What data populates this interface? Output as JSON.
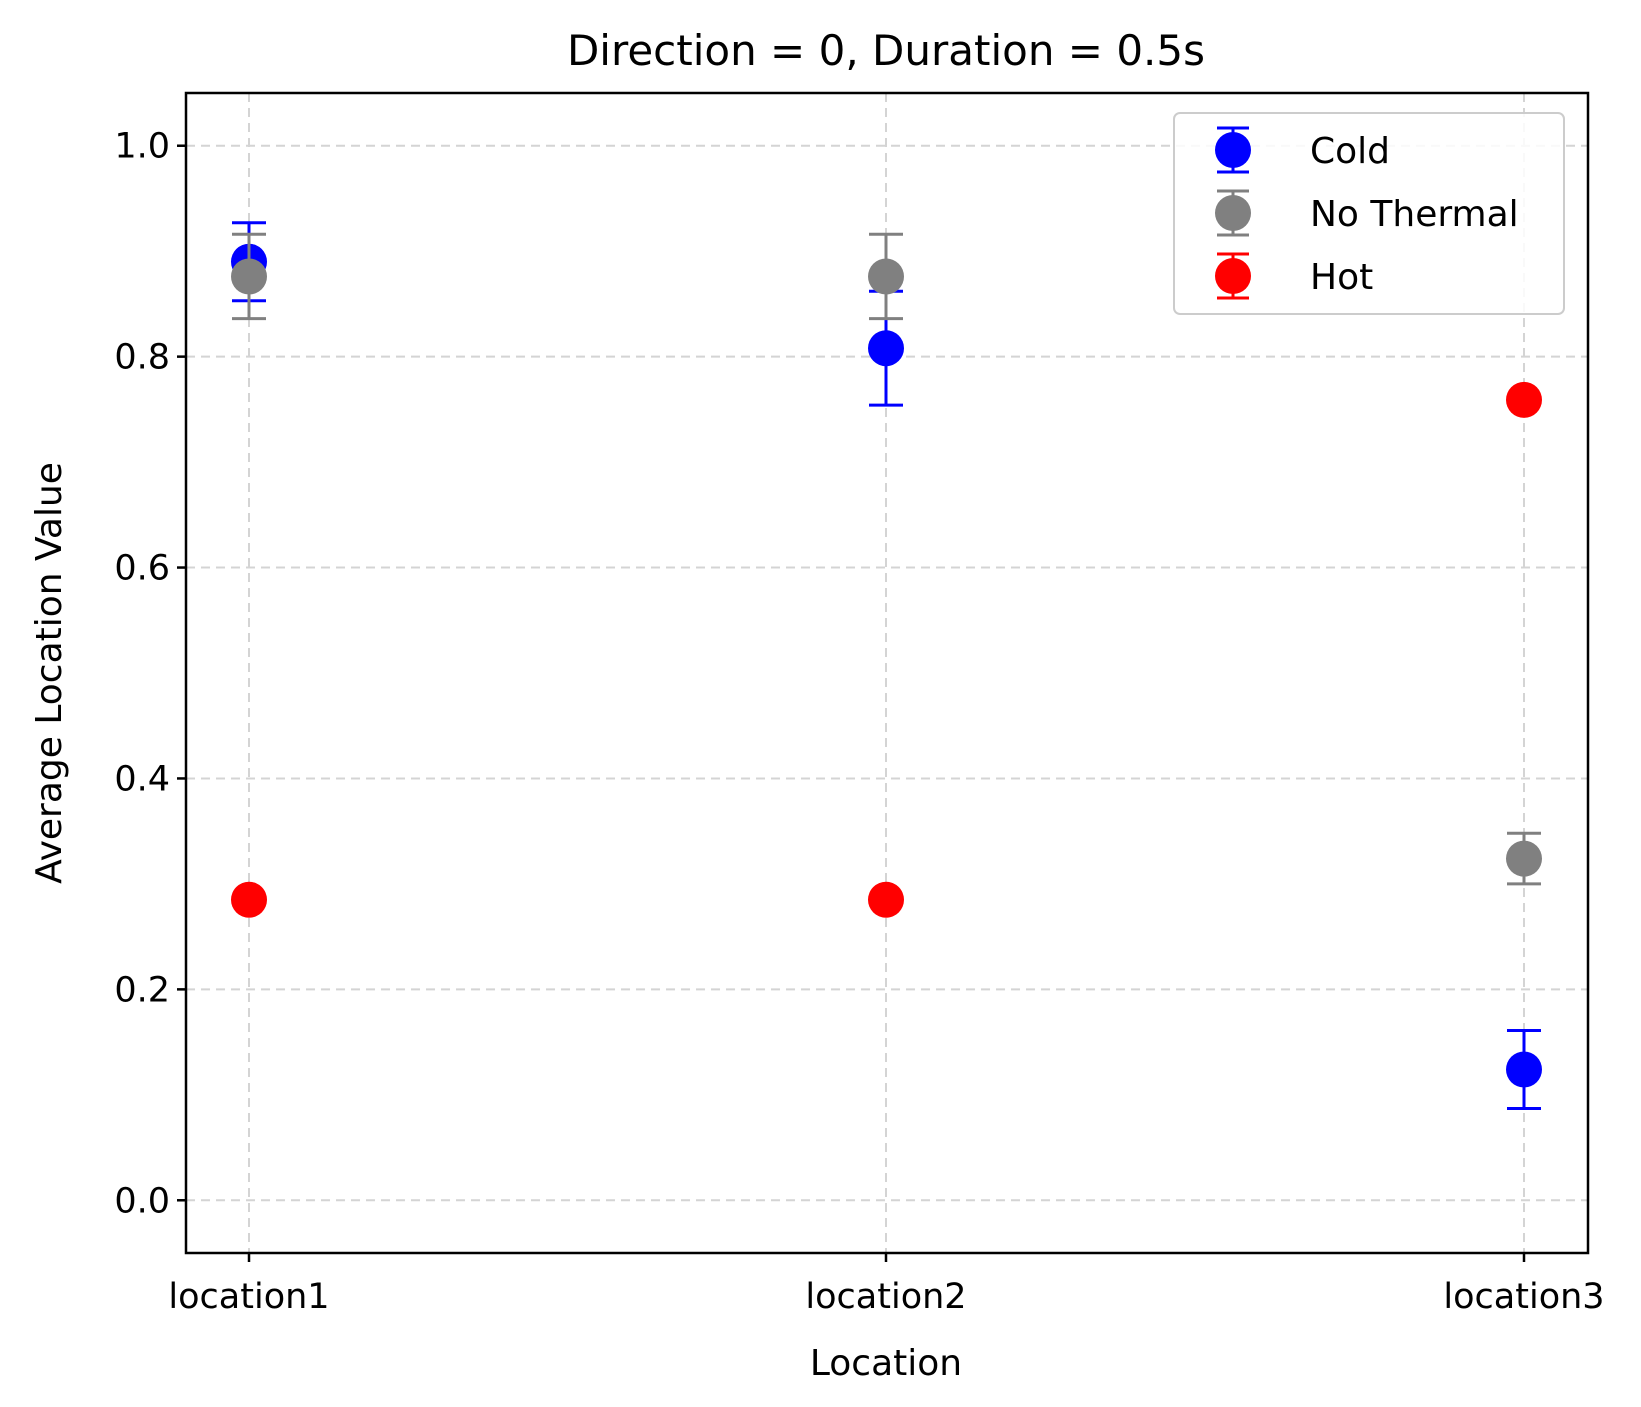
{
  "chart_data": {
    "type": "scatter",
    "title": "Direction = 0, Duration = 0.5s",
    "xlabel": "Location",
    "ylabel": "Average Location Value",
    "categories": [
      "location1",
      "location2",
      "location3"
    ],
    "ylim": [
      -0.05,
      1.05
    ],
    "yticks": [
      "0.0",
      "0.2",
      "0.4",
      "0.6",
      "0.8",
      "1.0"
    ],
    "grid": true,
    "legend_position": "top-right",
    "series": [
      {
        "name": "Cold",
        "color": "#0000ff",
        "values": [
          0.89,
          0.808,
          0.124
        ],
        "errors": [
          0.037,
          0.054,
          0.037
        ]
      },
      {
        "name": "No Thermal",
        "color": "#808080",
        "values": [
          0.876,
          0.876,
          0.324
        ],
        "errors": [
          0.04,
          0.04,
          0.024
        ]
      },
      {
        "name": "Hot",
        "color": "#ff0000",
        "values": [
          0.285,
          0.285,
          0.759
        ],
        "errors": [
          0,
          0,
          0
        ]
      }
    ]
  }
}
